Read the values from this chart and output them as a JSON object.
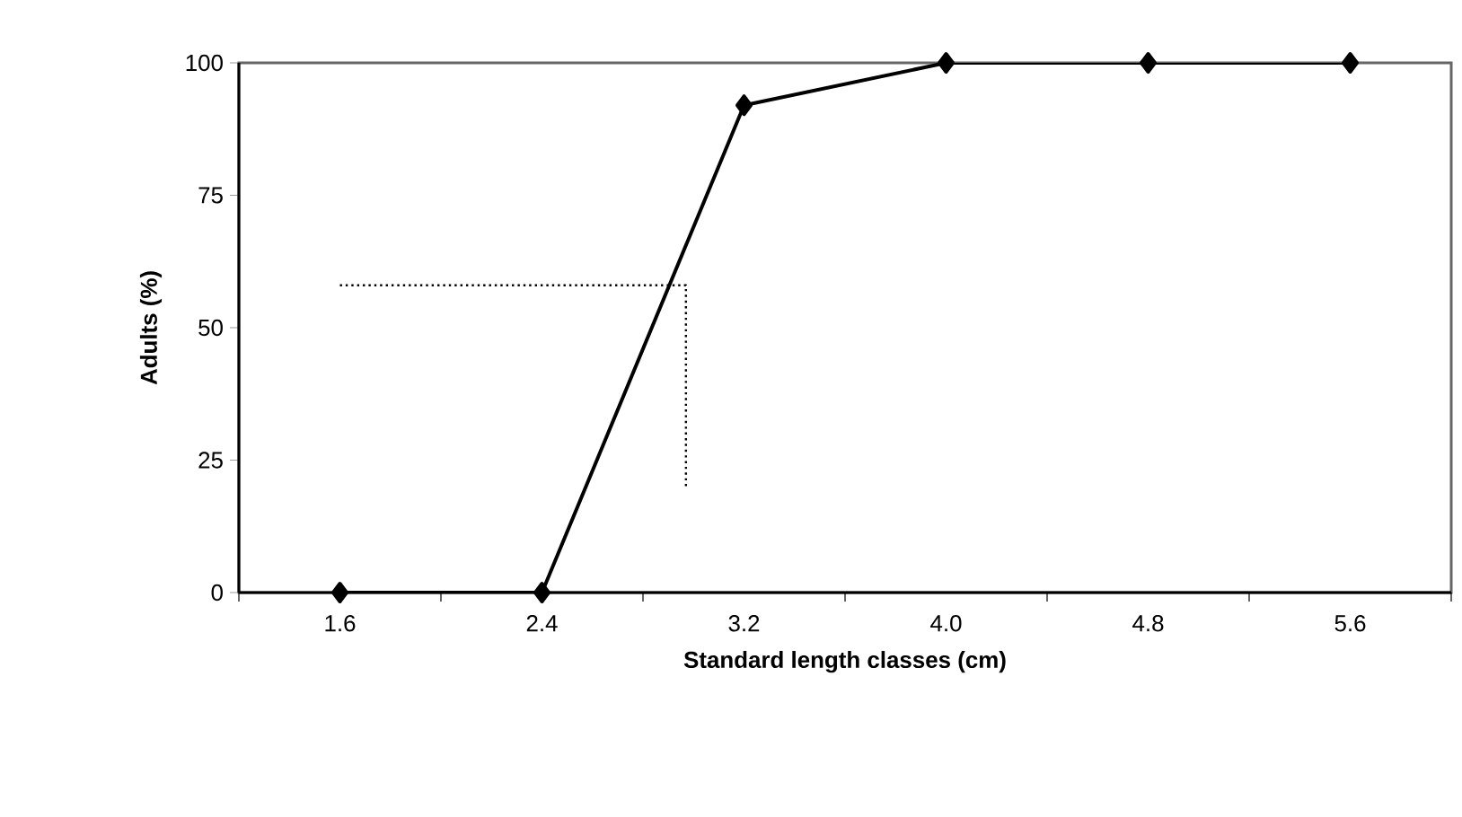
{
  "chart_data": {
    "type": "line",
    "xlabel": "Standard length classes (cm)",
    "ylabel": "Adults (%)",
    "xlim": [
      1.2,
      6.0
    ],
    "ylim": [
      0,
      100
    ],
    "xticks": [
      {
        "value": 1.2,
        "label": null
      },
      {
        "value": 1.6,
        "label": "1.6"
      },
      {
        "value": 2.0,
        "label": null
      },
      {
        "value": 2.4,
        "label": "2.4"
      },
      {
        "value": 2.8,
        "label": null
      },
      {
        "value": 3.2,
        "label": "3.2"
      },
      {
        "value": 3.6,
        "label": null
      },
      {
        "value": 4.0,
        "label": "4.0"
      },
      {
        "value": 4.4,
        "label": null
      },
      {
        "value": 4.8,
        "label": "4.8"
      },
      {
        "value": 5.2,
        "label": null
      },
      {
        "value": 5.6,
        "label": "5.6"
      },
      {
        "value": 6.0,
        "label": null
      }
    ],
    "yticks": [
      0,
      25,
      50,
      75,
      100
    ],
    "series": [
      {
        "color": "#000000",
        "marker": "diamond",
        "line_style": "solid",
        "x": [
          1.6,
          2.4,
          3.2,
          4.0,
          4.8,
          5.6
        ],
        "values": [
          0,
          0,
          92,
          100,
          100,
          100
        ]
      },
      {
        "color": "#000000",
        "marker": "none",
        "line_style": "dotted",
        "x": [
          1.6,
          2.97,
          2.97
        ],
        "values": [
          58,
          58,
          20
        ]
      }
    ]
  }
}
